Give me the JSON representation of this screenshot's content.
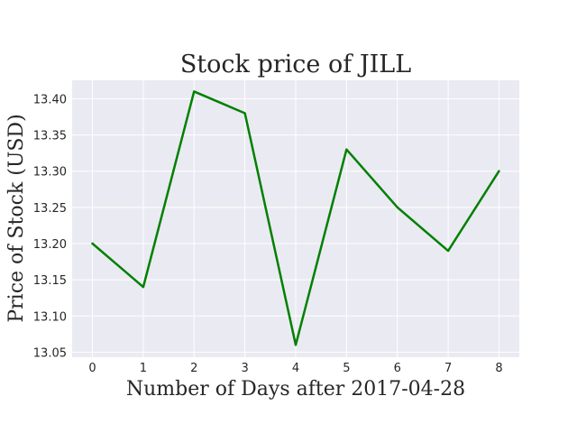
{
  "chart_data": {
    "type": "line",
    "title": "Stock price of JILL",
    "xlabel": "Number of Days after 2017-04-28",
    "ylabel": "Price of Stock (USD)",
    "x": [
      0,
      1,
      2,
      3,
      4,
      5,
      6,
      7,
      8
    ],
    "series": [
      {
        "values": [
          13.2,
          13.14,
          13.41,
          13.38,
          13.06,
          13.33,
          13.25,
          13.19,
          13.3
        ]
      }
    ],
    "x_ticks": [
      "0",
      "1",
      "2",
      "3",
      "4",
      "5",
      "6",
      "7",
      "8"
    ],
    "y_ticks": [
      "13.05",
      "13.10",
      "13.15",
      "13.20",
      "13.25",
      "13.30",
      "13.35",
      "13.40"
    ],
    "y_tick_values": [
      13.05,
      13.1,
      13.15,
      13.2,
      13.25,
      13.3,
      13.35,
      13.4
    ],
    "xlim": [
      -0.4,
      8.4
    ],
    "ylim": [
      13.043,
      13.4255
    ],
    "grid": true,
    "line_color": "#008000",
    "plot_background": "#eaeaf2",
    "grid_color": "#ffffff"
  }
}
